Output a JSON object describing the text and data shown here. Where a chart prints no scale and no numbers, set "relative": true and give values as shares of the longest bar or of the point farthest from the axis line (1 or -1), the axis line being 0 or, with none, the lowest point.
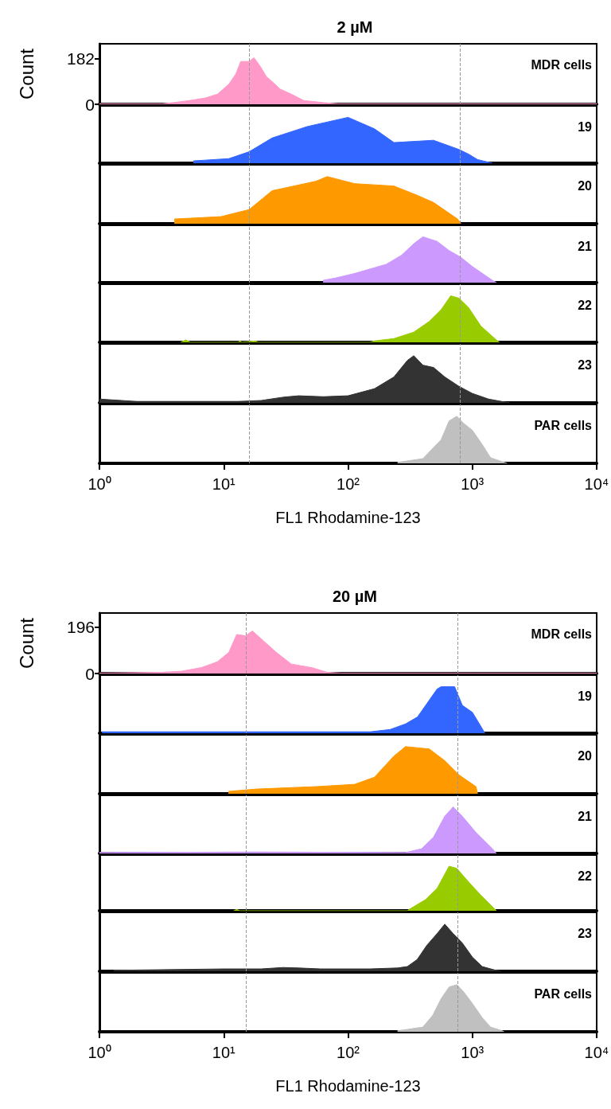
{
  "chart_data": [
    {
      "type": "area",
      "title": "2 µM",
      "ylabel": "Count",
      "annotations": [
        "MDR cells"
      ],
      "color": "#ff99c8",
      "log": "x",
      "xlim": [
        1,
        10000
      ],
      "ylim": [
        0,
        240
      ],
      "yticks": [
        0,
        182
      ],
      "tick_labels": "y",
      "ref_lines": [
        {
          "axis": "x",
          "value": 16,
          "color": "#999999",
          "line_style": "dashed"
        },
        {
          "axis": "x",
          "value": 790,
          "color": "#999999",
          "line_style": "dashed"
        }
      ],
      "x": [
        1,
        3.2,
        3.7,
        5.3,
        7.1,
        8.9,
        11,
        12.5,
        13.7,
        16,
        17.5,
        19.7,
        22,
        24.5,
        28.5,
        35,
        44,
        55,
        68,
        84,
        100,
        1000,
        10000
      ],
      "values": [
        2,
        2,
        5,
        15,
        25,
        40,
        80,
        120,
        170,
        170,
        185,
        150,
        110,
        90,
        60,
        40,
        15,
        10,
        5,
        2,
        2,
        2,
        2
      ]
    },
    {
      "type": "area",
      "annotations": [
        "19"
      ],
      "color": "#3366ff",
      "log": "x",
      "xlim": [
        1,
        10000
      ],
      "relative": true,
      "tick_labels": false,
      "ref_lines": [
        {
          "axis": "x",
          "value": 16,
          "color": "#999999",
          "line_style": "dashed"
        },
        {
          "axis": "x",
          "value": 790,
          "color": "#999999",
          "line_style": "dashed"
        }
      ],
      "x": [
        5.7,
        11,
        16,
        24.5,
        47,
        100,
        163,
        234,
        487,
        780,
        930,
        1100,
        1450
      ],
      "values": [
        0.05,
        0.1,
        0.25,
        0.55,
        0.8,
        1,
        0.75,
        0.45,
        0.5,
        0.3,
        0.2,
        0.08,
        0
      ]
    },
    {
      "type": "area",
      "annotations": [
        "20"
      ],
      "color": "#ff9900",
      "log": "x",
      "xlim": [
        1,
        10000
      ],
      "relative": true,
      "tick_labels": false,
      "ref_lines": [
        {
          "axis": "x",
          "value": 16,
          "color": "#999999",
          "line_style": "dashed"
        },
        {
          "axis": "x",
          "value": 790,
          "color": "#999999",
          "line_style": "dashed"
        }
      ],
      "x": [
        4,
        9.5,
        16,
        24.5,
        55,
        68,
        113,
        234,
        362,
        487,
        760,
        810
      ],
      "values": [
        0.1,
        0.15,
        0.3,
        0.7,
        0.9,
        1,
        0.85,
        0.8,
        0.6,
        0.45,
        0.1,
        0
      ]
    },
    {
      "type": "area",
      "annotations": [
        "21"
      ],
      "color": "#cc99ff",
      "log": "x",
      "xlim": [
        1,
        10000
      ],
      "relative": true,
      "tick_labels": false,
      "ref_lines": [
        {
          "axis": "x",
          "value": 16,
          "color": "#999999",
          "line_style": "dashed"
        },
        {
          "axis": "x",
          "value": 790,
          "color": "#999999",
          "line_style": "dashed"
        }
      ],
      "x": [
        63,
        79,
        113,
        203,
        270,
        338,
        400,
        520,
        650,
        810,
        1000,
        1450,
        1560
      ],
      "values": [
        0.05,
        0.1,
        0.2,
        0.4,
        0.6,
        0.85,
        1,
        0.9,
        0.7,
        0.55,
        0.35,
        0.05,
        0
      ]
    },
    {
      "type": "area",
      "annotations": [
        "22"
      ],
      "color": "#99cc00",
      "log": "x",
      "xlim": [
        1,
        10000
      ],
      "relative": true,
      "tick_labels": false,
      "ref_lines": [
        {
          "axis": "x",
          "value": 16,
          "color": "#999999",
          "line_style": "dashed"
        },
        {
          "axis": "x",
          "value": 790,
          "color": "#999999",
          "line_style": "dashed"
        }
      ],
      "x": [
        4.5,
        4.95,
        5.4,
        13,
        13.5,
        14,
        18,
        19,
        150,
        163,
        234,
        338,
        450,
        560,
        670,
        780,
        930,
        1170,
        1560,
        1650
      ],
      "values": [
        0,
        0.05,
        0,
        0,
        0.03,
        0,
        0.03,
        0,
        0,
        0.03,
        0.08,
        0.22,
        0.45,
        0.7,
        1,
        0.95,
        0.75,
        0.35,
        0.05,
        0
      ]
    },
    {
      "type": "area",
      "annotations": [
        "23"
      ],
      "color": "#333333",
      "log": "x",
      "xlim": [
        1,
        10000
      ],
      "relative": true,
      "tick_labels": false,
      "ref_lines": [
        {
          "axis": "x",
          "value": 16,
          "color": "#999999",
          "line_style": "dashed"
        },
        {
          "axis": "x",
          "value": 790,
          "color": "#999999",
          "line_style": "dashed"
        }
      ],
      "x": [
        1,
        2,
        13,
        20,
        30,
        40,
        63,
        100,
        163,
        234,
        300,
        338,
        400,
        487,
        600,
        780,
        1000,
        1350,
        1800,
        2000
      ],
      "values": [
        0.08,
        0.03,
        0.03,
        0.05,
        0.12,
        0.15,
        0.13,
        0.15,
        0.3,
        0.55,
        0.9,
        1,
        0.8,
        0.75,
        0.55,
        0.35,
        0.2,
        0.08,
        0.02,
        0
      ]
    },
    {
      "type": "area",
      "annotations": [
        "PAR cells"
      ],
      "color": "#c0c0c0",
      "log": "x",
      "xlim": [
        1,
        10000
      ],
      "relative": true,
      "tick_labels": "x",
      "xlabel": "FL1 Rhodamine-123",
      "xticks": [
        {
          "value": 1,
          "label": "10⁰"
        },
        {
          "value": 10,
          "label": "10¹"
        },
        {
          "value": 100,
          "label": "10²"
        },
        {
          "value": 1000,
          "label": "10³"
        },
        {
          "value": 10000,
          "label": "10⁴"
        }
      ],
      "ref_lines": [
        {
          "axis": "x",
          "value": 16,
          "color": "#999999",
          "line_style": "dashed"
        },
        {
          "axis": "x",
          "value": 790,
          "color": "#999999",
          "line_style": "dashed"
        }
      ],
      "x": [
        250,
        400,
        560,
        650,
        750,
        850,
        1000,
        1200,
        1400,
        1800,
        1900
      ],
      "values": [
        0.02,
        0.1,
        0.5,
        0.9,
        1,
        0.85,
        0.7,
        0.4,
        0.12,
        0.02,
        0
      ]
    },
    {
      "type": "area",
      "title": "20 µM",
      "ylabel": "Count",
      "annotations": [
        "MDR cells"
      ],
      "color": "#ff99c8",
      "log": "x",
      "xlim": [
        1,
        10000
      ],
      "ylim": [
        0,
        256
      ],
      "yticks": [
        0,
        196
      ],
      "tick_labels": "y",
      "ref_lines": [
        {
          "axis": "x",
          "value": 15,
          "color": "#999999",
          "line_style": "dashed"
        },
        {
          "axis": "x",
          "value": 760,
          "color": "#999999",
          "line_style": "dashed"
        }
      ],
      "x": [
        1,
        3.2,
        4.6,
        6.6,
        8.9,
        11,
        12.7,
        15,
        17,
        19.7,
        26.4,
        35,
        51,
        68,
        88,
        1000,
        10000
      ],
      "values": [
        2,
        5,
        10,
        25,
        50,
        90,
        165,
        160,
        180,
        150,
        90,
        40,
        25,
        5,
        2,
        2,
        2
      ]
    },
    {
      "type": "area",
      "annotations": [
        "19"
      ],
      "color": "#3366ff",
      "log": "x",
      "xlim": [
        1,
        10000
      ],
      "relative": true,
      "tick_labels": false,
      "ref_lines": [
        {
          "axis": "x",
          "value": 15,
          "color": "#999999",
          "line_style": "dashed"
        },
        {
          "axis": "x",
          "value": 760,
          "color": "#999999",
          "line_style": "dashed"
        }
      ],
      "x": [
        1.05,
        3.2,
        29.5,
        150,
        218,
        290,
        362,
        434,
        520,
        560,
        720,
        830,
        1000,
        1200,
        1260
      ],
      "values": [
        0.03,
        0.03,
        0.03,
        0.03,
        0.08,
        0.2,
        0.35,
        0.65,
        0.95,
        1,
        1,
        0.6,
        0.45,
        0.1,
        0
      ]
    },
    {
      "type": "area",
      "annotations": [
        "20"
      ],
      "color": "#ff9900",
      "log": "x",
      "xlim": [
        1,
        10000
      ],
      "relative": true,
      "tick_labels": false,
      "ref_lines": [
        {
          "axis": "x",
          "value": 15,
          "color": "#999999",
          "line_style": "dashed"
        },
        {
          "axis": "x",
          "value": 760,
          "color": "#999999",
          "line_style": "dashed"
        }
      ],
      "x": [
        10.9,
        18.4,
        55,
        113,
        163,
        234,
        290,
        450,
        600,
        780,
        1070,
        1100
      ],
      "values": [
        0.05,
        0.1,
        0.15,
        0.2,
        0.35,
        0.8,
        1,
        0.95,
        0.7,
        0.4,
        0.15,
        0
      ]
    },
    {
      "type": "area",
      "annotations": [
        "21"
      ],
      "color": "#cc99ff",
      "log": "x",
      "xlim": [
        1,
        10000
      ],
      "relative": true,
      "tick_labels": false,
      "ref_lines": [
        {
          "axis": "x",
          "value": 15,
          "color": "#999999",
          "line_style": "dashed"
        },
        {
          "axis": "x",
          "value": 760,
          "color": "#999999",
          "line_style": "dashed"
        }
      ],
      "x": [
        1,
        18.4,
        290,
        390,
        487,
        600,
        700,
        830,
        1070,
        1450,
        1560
      ],
      "values": [
        0.02,
        0.03,
        0.02,
        0.1,
        0.35,
        0.8,
        1,
        0.8,
        0.45,
        0.1,
        0
      ]
    },
    {
      "type": "area",
      "annotations": [
        "22"
      ],
      "color": "#99cc00",
      "log": "x",
      "xlim": [
        1,
        10000
      ],
      "relative": true,
      "tick_labels": false,
      "ref_lines": [
        {
          "axis": "x",
          "value": 15,
          "color": "#999999",
          "line_style": "dashed"
        },
        {
          "axis": "x",
          "value": 760,
          "color": "#999999",
          "line_style": "dashed"
        }
      ],
      "x": [
        12,
        12.7,
        13.5,
        300,
        310,
        420,
        520,
        650,
        750,
        930,
        1170,
        1500,
        1560
      ],
      "values": [
        0,
        0.03,
        0,
        0,
        0.03,
        0.25,
        0.5,
        1,
        0.95,
        0.65,
        0.35,
        0.05,
        0
      ]
    },
    {
      "type": "area",
      "annotations": [
        "23"
      ],
      "color": "#333333",
      "log": "x",
      "xlim": [
        1,
        10000
      ],
      "relative": true,
      "tick_labels": false,
      "ref_lines": [
        {
          "axis": "x",
          "value": 15,
          "color": "#999999",
          "line_style": "dashed"
        },
        {
          "axis": "x",
          "value": 760,
          "color": "#999999",
          "line_style": "dashed"
        }
      ],
      "x": [
        1.3,
        10,
        20,
        30,
        40,
        60,
        150,
        250,
        300,
        360,
        430,
        520,
        600,
        700,
        830,
        1000,
        1200,
        1500,
        1700
      ],
      "values": [
        0.02,
        0.05,
        0.05,
        0.08,
        0.07,
        0.05,
        0.05,
        0.07,
        0.1,
        0.25,
        0.55,
        0.8,
        1,
        0.8,
        0.6,
        0.3,
        0.1,
        0.03,
        0
      ]
    },
    {
      "type": "area",
      "annotations": [
        "PAR cells"
      ],
      "color": "#c0c0c0",
      "log": "x",
      "xlim": [
        1,
        10000
      ],
      "relative": true,
      "tick_labels": "x",
      "xlabel": "FL1 Rhodamine-123",
      "xticks": [
        {
          "value": 1,
          "label": "10⁰"
        },
        {
          "value": 10,
          "label": "10¹"
        },
        {
          "value": 100,
          "label": "10²"
        },
        {
          "value": 1000,
          "label": "10³"
        },
        {
          "value": 10000,
          "label": "10⁴"
        }
      ],
      "ref_lines": [
        {
          "axis": "x",
          "value": 15,
          "color": "#999999",
          "line_style": "dashed"
        },
        {
          "axis": "x",
          "value": 760,
          "color": "#999999",
          "line_style": "dashed"
        }
      ],
      "x": [
        250,
        300,
        400,
        480,
        560,
        650,
        750,
        850,
        1000,
        1200,
        1400,
        1700,
        1800
      ],
      "values": [
        0.02,
        0.05,
        0.1,
        0.35,
        0.7,
        0.95,
        1,
        0.85,
        0.6,
        0.3,
        0.1,
        0.03,
        0
      ]
    }
  ]
}
